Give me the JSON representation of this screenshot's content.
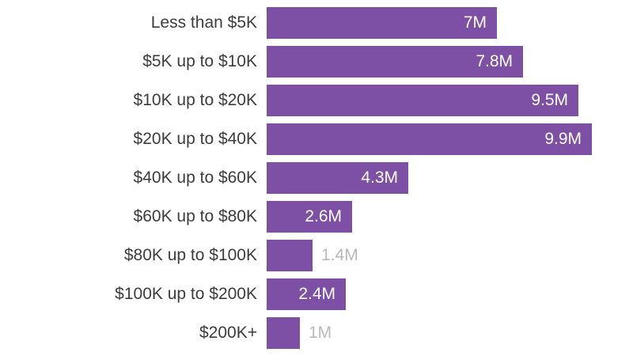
{
  "chart_data": {
    "type": "bar",
    "orientation": "horizontal",
    "title": "",
    "xlabel": "",
    "ylabel": "",
    "categories": [
      "Less than $5K",
      "$5K up to $10K",
      "$10K up to $20K",
      "$20K up to $40K",
      "$40K up to $60K",
      "$60K up to $80K",
      "$80K up to $100K",
      "$100K up to $200K",
      "$200K+"
    ],
    "values": [
      7,
      7.8,
      9.5,
      9.9,
      4.3,
      2.6,
      1.4,
      2.4,
      1
    ],
    "value_labels": [
      "7M",
      "7.8M",
      "9.5M",
      "9.9M",
      "4.3M",
      "2.6M",
      "1.4M",
      "2.4M",
      "1M"
    ],
    "value_label_placement": [
      "inside",
      "inside",
      "inside",
      "inside",
      "inside",
      "inside",
      "outside",
      "inside",
      "outside"
    ],
    "xlim": [
      0,
      9.9
    ],
    "grid": false,
    "legend": false,
    "colors": {
      "bar": "#7d50a5",
      "category_label": "#3d3d3d",
      "value_label_inside": "#ffffff",
      "value_label_outside": "#b9b9b9",
      "background": "#ffffff"
    }
  }
}
